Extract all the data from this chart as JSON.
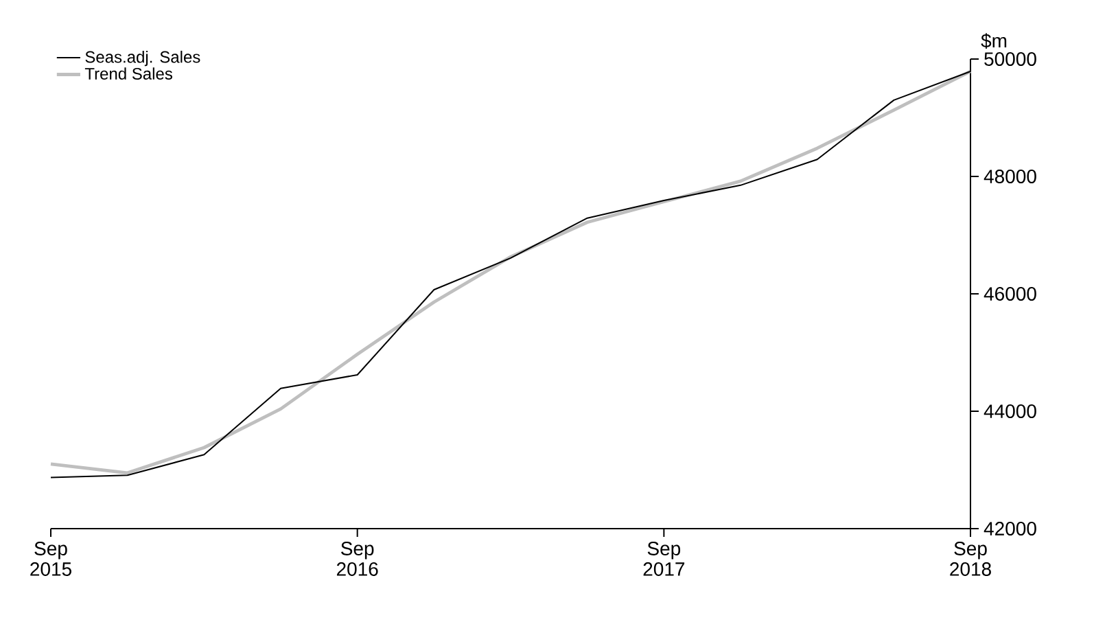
{
  "chart_data": {
    "type": "line",
    "ylabel": "$m",
    "categories": [
      "Sep 2015",
      null,
      null,
      null,
      "Sep 2016",
      null,
      null,
      null,
      "Sep 2017",
      null,
      null,
      null,
      "Sep 2018"
    ],
    "ylim": [
      42000,
      50000
    ],
    "yticks": [
      42000,
      44000,
      46000,
      48000,
      50000
    ],
    "legend": "top left",
    "series": [
      {
        "name": "Seas.adj. Sales",
        "color": "#000000",
        "values": [
          42870,
          42910,
          43260,
          44390,
          44620,
          46070,
          46610,
          47290,
          47590,
          47850,
          48290,
          49300,
          49790
        ]
      },
      {
        "name": "Trend Sales",
        "color": "#bfbfbf",
        "values": [
          43100,
          42950,
          43380,
          44040,
          44970,
          45860,
          46630,
          47220,
          47570,
          47920,
          48480,
          49130,
          49790
        ]
      }
    ]
  }
}
